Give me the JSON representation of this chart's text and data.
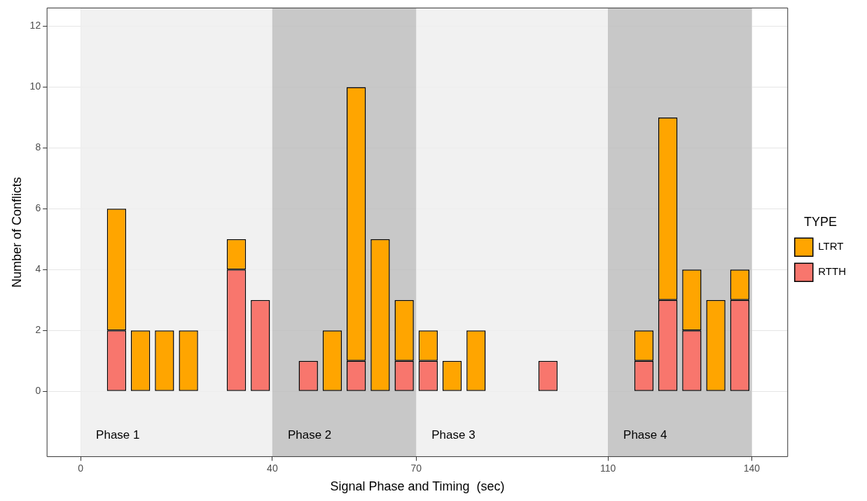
{
  "chart_data": {
    "type": "bar",
    "xlabel": "Signal Phase and Timing  (sec)",
    "ylabel": "Number of Conflicts",
    "legend_title": "TYPE",
    "x": [
      7.5,
      12.5,
      17.5,
      22.5,
      32.5,
      37.5,
      47.5,
      52.5,
      57.5,
      62.5,
      67.5,
      72.5,
      77.5,
      82.5,
      97.5,
      117.5,
      122.5,
      127.5,
      132.5,
      137.5
    ],
    "stacked": true,
    "series": [
      {
        "name": "RTTH",
        "color": "#f8766d",
        "values": [
          2,
          null,
          null,
          null,
          4,
          3,
          1,
          null,
          1,
          null,
          1,
          1,
          null,
          null,
          1,
          1,
          3,
          2,
          null,
          3
        ]
      },
      {
        "name": "LTRT",
        "color": "#ffa500",
        "values": [
          4,
          2,
          2,
          2,
          1,
          null,
          null,
          2,
          9,
          5,
          2,
          1,
          1,
          2,
          null,
          1,
          6,
          2,
          3,
          1
        ]
      }
    ],
    "xlim": [
      -7,
      147.5
    ],
    "xticks": [
      0,
      40,
      70,
      110,
      140
    ],
    "ylim": [
      -2.15,
      12.6
    ],
    "yticks": [
      0,
      2,
      4,
      6,
      8,
      10,
      12
    ],
    "bands": [
      {
        "axis": "x",
        "from": 0,
        "to": 40,
        "label": "Phase 1",
        "color": "#efefef"
      },
      {
        "axis": "x",
        "from": 40,
        "to": 70,
        "label": "Phase 2",
        "color": "#bebebe"
      },
      {
        "axis": "x",
        "from": 70,
        "to": 110,
        "label": "Phase 3",
        "color": "#efefef"
      },
      {
        "axis": "x",
        "from": 110,
        "to": 140,
        "label": "Phase 4",
        "color": "#bebebe"
      }
    ],
    "grid": true,
    "legend": "right"
  }
}
